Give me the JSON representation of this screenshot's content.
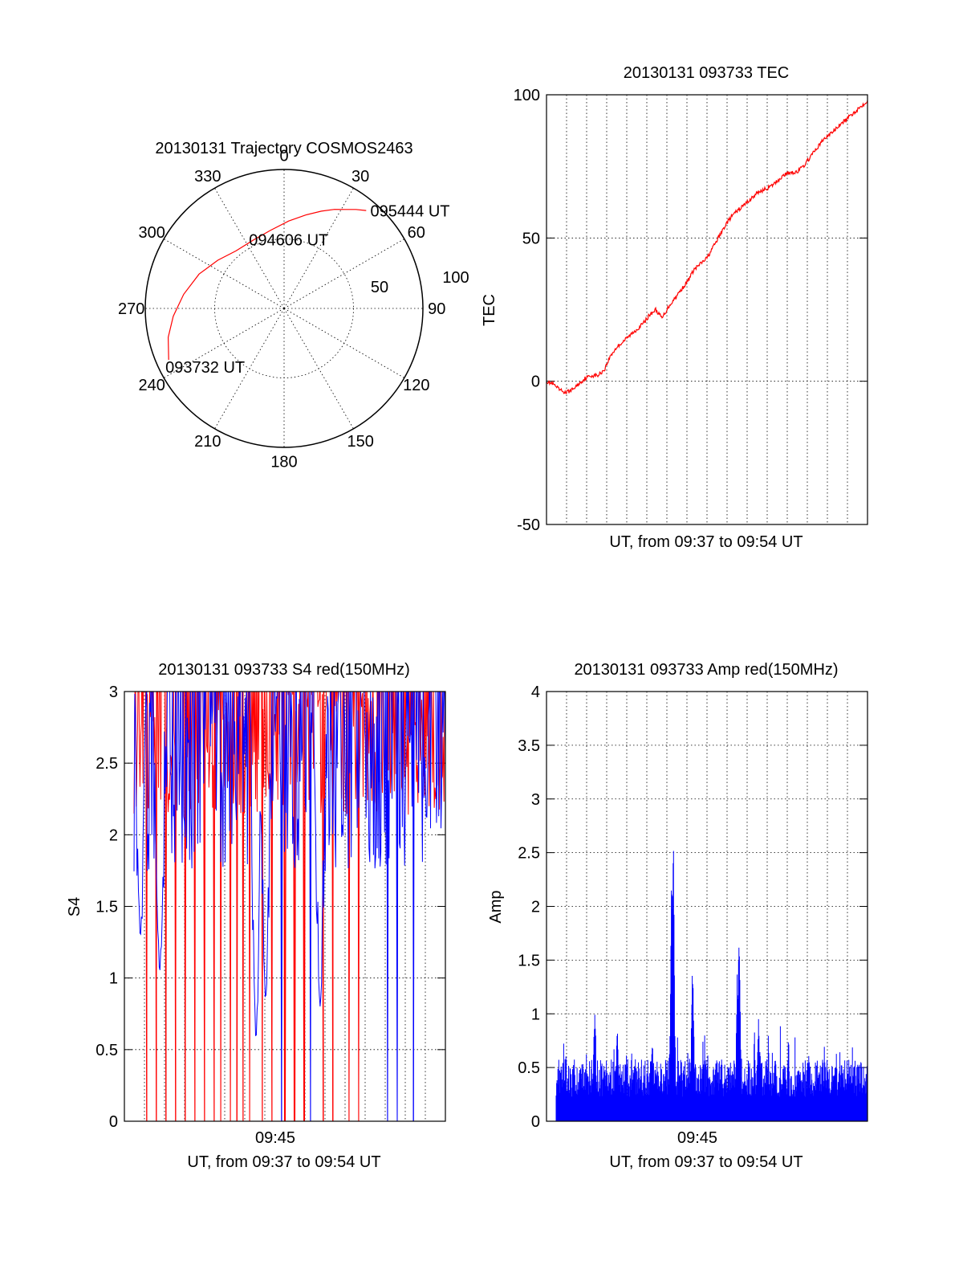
{
  "chart_data": [
    {
      "id": "polar",
      "type": "polar-trajectory",
      "title": "20130131 Trajectory COSMOS2463",
      "angle_labels": [
        {
          "deg": 0,
          "text": "0"
        },
        {
          "deg": 30,
          "text": "30"
        },
        {
          "deg": 60,
          "text": "60"
        },
        {
          "deg": 90,
          "text": "90"
        },
        {
          "deg": 120,
          "text": "120"
        },
        {
          "deg": 150,
          "text": "150"
        },
        {
          "deg": 180,
          "text": "180"
        },
        {
          "deg": 210,
          "text": "210"
        },
        {
          "deg": 240,
          "text": "240"
        },
        {
          "deg": 270,
          "text": "270"
        },
        {
          "deg": 300,
          "text": "300"
        },
        {
          "deg": 330,
          "text": "330"
        }
      ],
      "radius_max": 100,
      "radial_labels": [
        {
          "value": 50,
          "text": "50"
        },
        {
          "value": 100,
          "text": "100"
        }
      ],
      "radial_grid": [
        50
      ],
      "track_color": "#ff0000",
      "track": [
        {
          "az": 246,
          "zd": 91
        },
        {
          "az": 256,
          "zd": 86
        },
        {
          "az": 266,
          "zd": 80
        },
        {
          "az": 278,
          "zd": 73
        },
        {
          "az": 292,
          "zd": 66
        },
        {
          "az": 306,
          "zd": 59
        },
        {
          "az": 320,
          "zd": 54
        },
        {
          "az": 336,
          "zd": 54
        },
        {
          "az": 350,
          "zd": 57
        },
        {
          "az": 3,
          "zd": 63
        },
        {
          "az": 13,
          "zd": 69
        },
        {
          "az": 21,
          "zd": 75
        },
        {
          "az": 27,
          "zd": 80
        },
        {
          "az": 32,
          "zd": 84
        },
        {
          "az": 36,
          "zd": 88
        },
        {
          "az": 40,
          "zd": 92
        }
      ],
      "annotations": [
        {
          "text": "095444 UT",
          "az": 41,
          "zd": 93
        },
        {
          "text": "094606 UT",
          "az": 334,
          "zd": 55
        },
        {
          "text": "093732 UT",
          "az": 246,
          "zd": 91
        }
      ]
    },
    {
      "id": "tec",
      "type": "line",
      "title": "20130131 093733 TEC",
      "ylabel": "TEC",
      "xlabel": "UT, from 09:37 to 09:54 UT",
      "xlim": [
        0,
        1
      ],
      "ylim": [
        -50,
        100
      ],
      "yticks": [
        -50,
        0,
        50,
        100
      ],
      "xticks": [],
      "series": [
        {
          "color": "#ff0000",
          "x": [
            0,
            0.02,
            0.04,
            0.06,
            0.08,
            0.1,
            0.12,
            0.14,
            0.16,
            0.18,
            0.2,
            0.22,
            0.24,
            0.26,
            0.28,
            0.3,
            0.32,
            0.34,
            0.36,
            0.38,
            0.4,
            0.42,
            0.44,
            0.46,
            0.48,
            0.5,
            0.52,
            0.54,
            0.56,
            0.58,
            0.6,
            0.62,
            0.64,
            0.66,
            0.68,
            0.7,
            0.72,
            0.74,
            0.76,
            0.78,
            0.8,
            0.82,
            0.84,
            0.86,
            0.88,
            0.9,
            0.92,
            0.94,
            0.96,
            0.98,
            1.0
          ],
          "values": [
            0,
            -1,
            -3,
            -4,
            -3,
            -1,
            1,
            2,
            2,
            4,
            9,
            12,
            14,
            16,
            18,
            20,
            23,
            25,
            22,
            26,
            29,
            32,
            35,
            39,
            41,
            43,
            47,
            51,
            55,
            58,
            60,
            62,
            64,
            66,
            67,
            68,
            70,
            72,
            73,
            73,
            75,
            78,
            81,
            84,
            86,
            88,
            90,
            92,
            94,
            96,
            98
          ]
        }
      ]
    },
    {
      "id": "s4",
      "type": "line",
      "title": "20130131 093733 S4 red(150MHz)",
      "ylabel": "S4",
      "xlabel": "UT, from 09:37 to 09:54 UT",
      "xlim": [
        0,
        1
      ],
      "ylim": [
        0,
        3
      ],
      "yticks": [
        0,
        0.5,
        1,
        1.5,
        2,
        2.5,
        3
      ],
      "ytick_labels": [
        "0",
        "0.5",
        "1",
        "1.5",
        "2",
        "2.5",
        "3"
      ],
      "xticks": [
        {
          "value": 0.47,
          "label": "09:45"
        }
      ],
      "series": [
        {
          "name": "",
          "color": "#ff0000",
          "style": "noise",
          "base": 2.6,
          "spread": 0.6,
          "drops": [
            0.07,
            0.1,
            0.13,
            0.16,
            0.19,
            0.22,
            0.25,
            0.28,
            0.3,
            0.33,
            0.35,
            0.37,
            0.39,
            0.43,
            0.46,
            0.5,
            0.53,
            0.56,
            0.62,
            0.65,
            0.7,
            0.73
          ]
        },
        {
          "name": "",
          "color": "#0000ff",
          "style": "noise",
          "base": 2.3,
          "spread": 0.7,
          "dips": [
            {
              "x": 0.41,
              "y": 0.58
            },
            {
              "x": 0.44,
              "y": 0.86
            },
            {
              "x": 0.61,
              "y": 0.8
            },
            {
              "x": 0.05,
              "y": 1.3
            },
            {
              "x": 0.11,
              "y": 1.05
            }
          ],
          "drops": [
            0.49,
            0.58,
            0.82,
            0.85,
            0.9
          ]
        }
      ]
    },
    {
      "id": "amp",
      "type": "area",
      "title": "20130131 093733 Amp red(150MHz)",
      "ylabel": "Amp",
      "xlabel": "UT, from 09:37 to 09:54 UT",
      "xlim": [
        0,
        1
      ],
      "ylim": [
        0,
        4
      ],
      "yticks": [
        0,
        0.5,
        1,
        1.5,
        2,
        2.5,
        3,
        3.5,
        4
      ],
      "ytick_labels": [
        "0",
        "0.5",
        "1",
        "1.5",
        "2",
        "2.5",
        "3",
        "3.5",
        "4"
      ],
      "xticks": [
        {
          "value": 0.47,
          "label": "09:45"
        }
      ],
      "series": [
        {
          "color": "#0000ff",
          "start": 0.03,
          "base": 0.42,
          "spread": 0.25,
          "peaks": [
            {
              "x": 0.395,
              "y": 2.7
            },
            {
              "x": 0.39,
              "y": 2.4
            },
            {
              "x": 0.455,
              "y": 1.55
            },
            {
              "x": 0.6,
              "y": 1.85
            },
            {
              "x": 0.595,
              "y": 1.5
            },
            {
              "x": 0.66,
              "y": 1.05
            },
            {
              "x": 0.15,
              "y": 1.12
            },
            {
              "x": 0.22,
              "y": 0.97
            },
            {
              "x": 0.33,
              "y": 0.82
            }
          ]
        }
      ]
    }
  ]
}
